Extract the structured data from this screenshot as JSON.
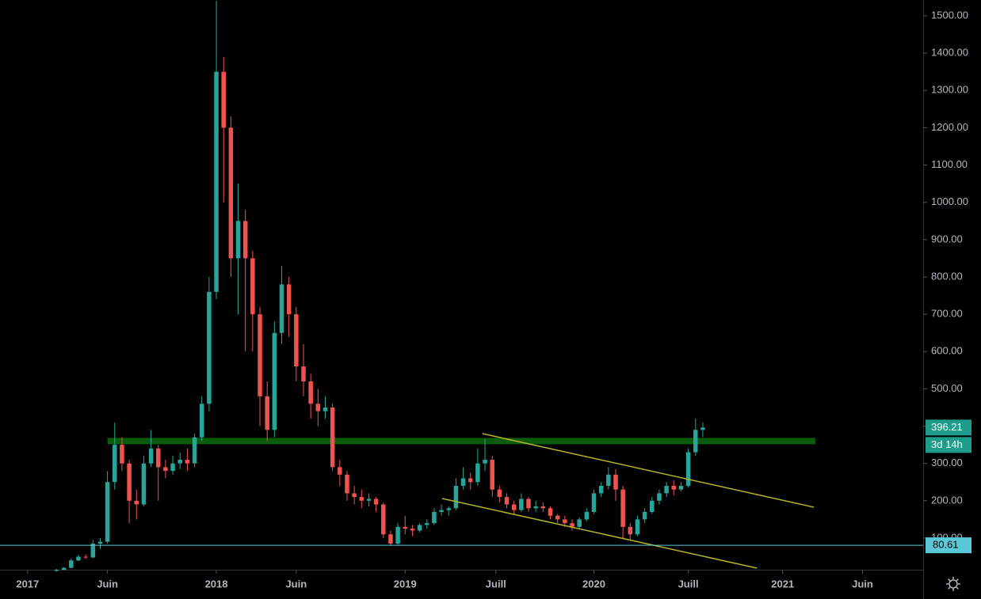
{
  "chart_data": {
    "type": "candlestick",
    "up_color": "#26a69a",
    "down_color": "#ef5350",
    "x": [
      8,
      10,
      12,
      14,
      16,
      18,
      20,
      22,
      24,
      26,
      28,
      30,
      32,
      34,
      36,
      38,
      40,
      42,
      44,
      46,
      48,
      50,
      52,
      54,
      56,
      58,
      60,
      62,
      64,
      66,
      68,
      70,
      72,
      74,
      76,
      78,
      80,
      82,
      84,
      86,
      88,
      90,
      92,
      94,
      96,
      98,
      100,
      102,
      104,
      106,
      108,
      110,
      112,
      114,
      116,
      118,
      120,
      122,
      124,
      126,
      128,
      130,
      132,
      134,
      136,
      138,
      140,
      142,
      144,
      146,
      148,
      150,
      152,
      154,
      156,
      158,
      160,
      162,
      164,
      166,
      168,
      170,
      172,
      174,
      176,
      178,
      180,
      182,
      184,
      186
    ],
    "ohlc": [
      [
        12,
        17,
        10,
        15
      ],
      [
        15,
        22,
        14,
        20
      ],
      [
        20,
        45,
        19,
        40
      ],
      [
        40,
        55,
        38,
        50
      ],
      [
        50,
        56,
        44,
        48
      ],
      [
        48,
        95,
        46,
        85
      ],
      [
        85,
        100,
        70,
        90
      ],
      [
        90,
        280,
        85,
        250
      ],
      [
        250,
        410,
        230,
        350
      ],
      [
        350,
        370,
        280,
        300
      ],
      [
        300,
        310,
        140,
        200
      ],
      [
        200,
        230,
        150,
        190
      ],
      [
        190,
        320,
        185,
        300
      ],
      [
        300,
        390,
        290,
        340
      ],
      [
        340,
        350,
        200,
        290
      ],
      [
        290,
        310,
        260,
        280
      ],
      [
        280,
        320,
        270,
        300
      ],
      [
        300,
        330,
        285,
        310
      ],
      [
        310,
        340,
        280,
        300
      ],
      [
        300,
        380,
        290,
        370
      ],
      [
        370,
        480,
        360,
        460
      ],
      [
        460,
        800,
        440,
        760
      ],
      [
        760,
        1540,
        740,
        1350
      ],
      [
        1350,
        1390,
        1000,
        1200
      ],
      [
        1200,
        1230,
        800,
        850
      ],
      [
        850,
        1050,
        700,
        950
      ],
      [
        950,
        980,
        600,
        850
      ],
      [
        850,
        870,
        600,
        700
      ],
      [
        700,
        720,
        400,
        480
      ],
      [
        480,
        520,
        360,
        390
      ],
      [
        390,
        680,
        370,
        650
      ],
      [
        650,
        830,
        620,
        780
      ],
      [
        780,
        800,
        640,
        700
      ],
      [
        700,
        720,
        520,
        560
      ],
      [
        560,
        620,
        480,
        520
      ],
      [
        520,
        540,
        420,
        460
      ],
      [
        460,
        500,
        400,
        440
      ],
      [
        440,
        480,
        420,
        450
      ],
      [
        450,
        460,
        280,
        290
      ],
      [
        290,
        310,
        240,
        270
      ],
      [
        270,
        280,
        200,
        220
      ],
      [
        220,
        240,
        190,
        210
      ],
      [
        210,
        230,
        180,
        200
      ],
      [
        200,
        220,
        185,
        205
      ],
      [
        205,
        210,
        170,
        190
      ],
      [
        190,
        195,
        100,
        110
      ],
      [
        110,
        120,
        82,
        85
      ],
      [
        85,
        140,
        82,
        130
      ],
      [
        130,
        160,
        110,
        125
      ],
      [
        125,
        135,
        105,
        120
      ],
      [
        120,
        140,
        115,
        135
      ],
      [
        135,
        150,
        125,
        140
      ],
      [
        140,
        180,
        135,
        170
      ],
      [
        170,
        190,
        160,
        175
      ],
      [
        175,
        185,
        160,
        180
      ],
      [
        180,
        260,
        175,
        240
      ],
      [
        240,
        290,
        230,
        260
      ],
      [
        260,
        275,
        230,
        250
      ],
      [
        250,
        340,
        240,
        300
      ],
      [
        300,
        365,
        280,
        310
      ],
      [
        310,
        320,
        210,
        230
      ],
      [
        230,
        240,
        195,
        210
      ],
      [
        210,
        220,
        180,
        190
      ],
      [
        190,
        200,
        165,
        175
      ],
      [
        175,
        220,
        170,
        205
      ],
      [
        205,
        210,
        170,
        180
      ],
      [
        180,
        200,
        170,
        185
      ],
      [
        185,
        195,
        170,
        180
      ],
      [
        180,
        185,
        150,
        160
      ],
      [
        160,
        165,
        140,
        150
      ],
      [
        150,
        160,
        130,
        140
      ],
      [
        140,
        150,
        120,
        130
      ],
      [
        130,
        155,
        125,
        150
      ],
      [
        150,
        180,
        145,
        170
      ],
      [
        170,
        230,
        165,
        220
      ],
      [
        220,
        250,
        210,
        240
      ],
      [
        240,
        290,
        230,
        270
      ],
      [
        270,
        285,
        200,
        230
      ],
      [
        230,
        240,
        100,
        130
      ],
      [
        130,
        140,
        95,
        110
      ],
      [
        110,
        160,
        105,
        150
      ],
      [
        150,
        180,
        140,
        170
      ],
      [
        170,
        210,
        165,
        200
      ],
      [
        200,
        230,
        190,
        220
      ],
      [
        220,
        250,
        210,
        240
      ],
      [
        240,
        255,
        215,
        230
      ],
      [
        230,
        250,
        225,
        240
      ],
      [
        240,
        340,
        235,
        330
      ],
      [
        330,
        420,
        320,
        390
      ],
      [
        390,
        410,
        370,
        396.21
      ]
    ],
    "xlim": [
      -7.6,
      246.7
    ],
    "ylim": [
      15.1,
      1542.4
    ],
    "xticks": [
      {
        "value": 0,
        "label": "2017"
      },
      {
        "value": 22,
        "label": "Juin"
      },
      {
        "value": 52,
        "label": "2018"
      },
      {
        "value": 74,
        "label": "Juin"
      },
      {
        "value": 104,
        "label": "2019"
      },
      {
        "value": 129,
        "label": "Juill"
      },
      {
        "value": 156,
        "label": "2020"
      },
      {
        "value": 182,
        "label": "Juill"
      },
      {
        "value": 208,
        "label": "2021"
      },
      {
        "value": 230,
        "label": "Juin"
      }
    ],
    "yticks": [
      {
        "value": 100,
        "label": "100.00"
      },
      {
        "value": 200,
        "label": "200.00"
      },
      {
        "value": 300,
        "label": "300.00"
      },
      {
        "value": 400,
        "label": "400.00"
      },
      {
        "value": 500,
        "label": "500.00"
      },
      {
        "value": 600,
        "label": "600.00"
      },
      {
        "value": 700,
        "label": "700.00"
      },
      {
        "value": 800,
        "label": "800.00"
      },
      {
        "value": 900,
        "label": "900.00"
      },
      {
        "value": 1000,
        "label": "1000.00"
      },
      {
        "value": 1100,
        "label": "1100.00"
      },
      {
        "value": 1200,
        "label": "1200.00"
      },
      {
        "value": 1300,
        "label": "1300.00"
      },
      {
        "value": 1400,
        "label": "1400.00"
      },
      {
        "value": 1500,
        "label": "1500.00"
      }
    ],
    "zone": {
      "x": [
        22,
        217
      ],
      "value": 360,
      "color": "#0a5c0a"
    },
    "trendlines": [
      {
        "x": [
          125.3,
          216.6
        ],
        "values": [
          380,
          182.7
        ],
        "color": "#b5b32a"
      },
      {
        "x": [
          114.2,
          200.9
        ],
        "values": [
          206,
          19.4
        ],
        "color": "#b5b32a"
      }
    ],
    "support": {
      "value": 80.61,
      "label": "80.61",
      "color": "#5bc8d8"
    },
    "last_price": {
      "value": 396.21,
      "label": "396.21",
      "countdown": "3d 14h",
      "color": "#1e9c8c"
    }
  }
}
